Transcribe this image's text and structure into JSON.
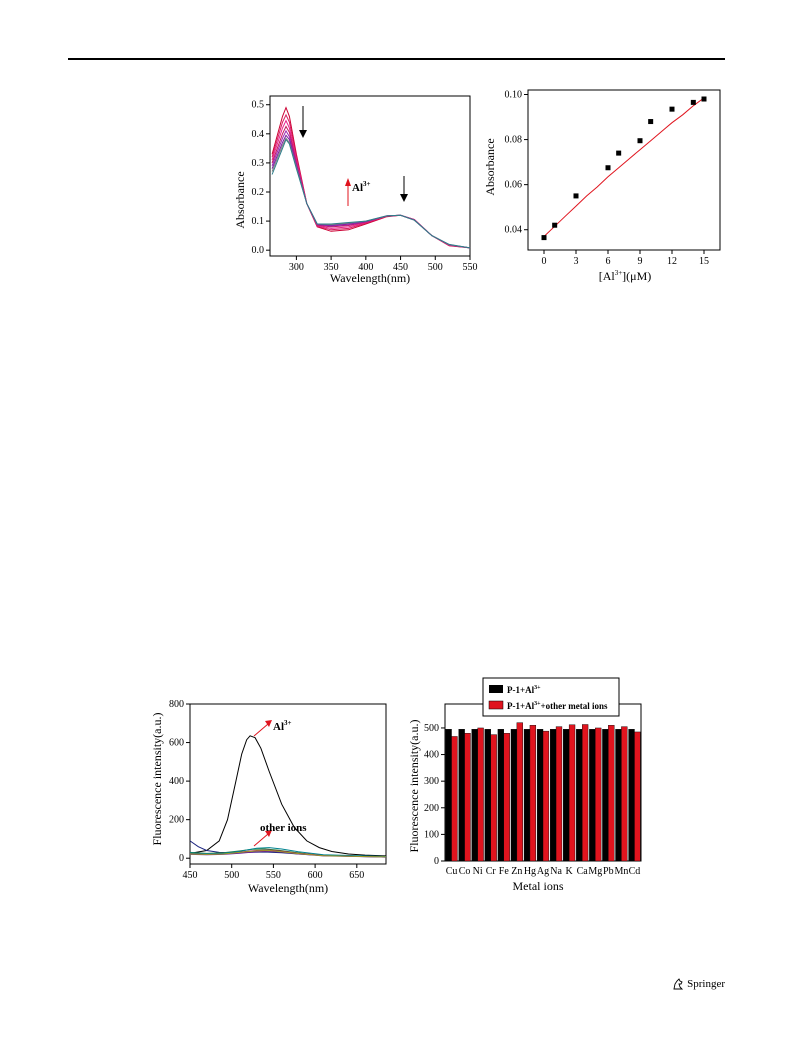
{
  "publisher": {
    "name": "Springer"
  },
  "figures": {
    "uv_titration": {
      "xlabel": "Wavelength(nm)",
      "ylabel": "Absorbance",
      "annotation": "Al",
      "annotation_sup": "3+"
    },
    "abs_vs_conc": {
      "xlabel_main": "[Al",
      "xlabel_sup": "3+",
      "xlabel_tail": "](μM)",
      "ylabel": "Absorbance"
    },
    "fluorescence": {
      "xlabel": "Wavelength(nm)",
      "ylabel": "Fluorescence intensity(a.u.)",
      "annotation_al": "Al",
      "annotation_al_sup": "3+",
      "annotation_other": "other ions"
    },
    "competition": {
      "xlabel": "Metal ions",
      "ylabel": "Fluorescence intensity(a.u.)",
      "legend1_main": "P-1+Al",
      "legend1_sup": "3+",
      "legend2_main": "P-1+Al",
      "legend2_sup": "3+",
      "legend2_tail": "+other metal ions"
    }
  },
  "chart_data": [
    {
      "type": "line",
      "xlim": [
        262,
        550
      ],
      "ylim": [
        -0.02,
        0.53
      ],
      "xticks": [
        300,
        350,
        400,
        450,
        500,
        550
      ],
      "yticks": [
        0.0,
        0.1,
        0.2,
        0.3,
        0.4,
        0.5
      ],
      "series": [
        {
          "color": "#cc0033",
          "values": [
            [
              265,
              0.33
            ],
            [
              280,
              0.46
            ],
            [
              285,
              0.49
            ],
            [
              290,
              0.46
            ],
            [
              300,
              0.33
            ],
            [
              315,
              0.16
            ],
            [
              330,
              0.08
            ],
            [
              350,
              0.065
            ],
            [
              375,
              0.07
            ],
            [
              400,
              0.09
            ],
            [
              430,
              0.115
            ],
            [
              450,
              0.12
            ],
            [
              470,
              0.105
            ],
            [
              495,
              0.05
            ],
            [
              520,
              0.015
            ],
            [
              550,
              0.008
            ]
          ]
        },
        {
          "color": "#d81b60",
          "values": [
            [
              265,
              0.32
            ],
            [
              280,
              0.44
            ],
            [
              285,
              0.465
            ],
            [
              290,
              0.44
            ],
            [
              300,
              0.32
            ],
            [
              315,
              0.16
            ],
            [
              330,
              0.082
            ],
            [
              350,
              0.07
            ],
            [
              375,
              0.075
            ],
            [
              400,
              0.093
            ],
            [
              430,
              0.116
            ],
            [
              450,
              0.12
            ],
            [
              470,
              0.105
            ],
            [
              495,
              0.05
            ],
            [
              520,
              0.016
            ],
            [
              550,
              0.008
            ]
          ]
        },
        {
          "color": "#e91e8c",
          "values": [
            [
              265,
              0.31
            ],
            [
              280,
              0.42
            ],
            [
              285,
              0.445
            ],
            [
              290,
              0.42
            ],
            [
              300,
              0.31
            ],
            [
              315,
              0.16
            ],
            [
              330,
              0.084
            ],
            [
              350,
              0.075
            ],
            [
              375,
              0.08
            ],
            [
              400,
              0.095
            ],
            [
              430,
              0.117
            ],
            [
              450,
              0.12
            ],
            [
              470,
              0.105
            ],
            [
              495,
              0.05
            ],
            [
              520,
              0.017
            ],
            [
              550,
              0.008
            ]
          ]
        },
        {
          "color": "#c2185b",
          "values": [
            [
              265,
              0.3
            ],
            [
              280,
              0.4
            ],
            [
              285,
              0.425
            ],
            [
              290,
              0.405
            ],
            [
              300,
              0.3
            ],
            [
              315,
              0.16
            ],
            [
              330,
              0.086
            ],
            [
              350,
              0.08
            ],
            [
              375,
              0.085
            ],
            [
              400,
              0.097
            ],
            [
              430,
              0.118
            ],
            [
              450,
              0.12
            ],
            [
              470,
              0.104
            ],
            [
              495,
              0.05
            ],
            [
              520,
              0.018
            ],
            [
              550,
              0.008
            ]
          ]
        },
        {
          "color": "#9c27b0",
          "values": [
            [
              265,
              0.29
            ],
            [
              280,
              0.385
            ],
            [
              285,
              0.41
            ],
            [
              290,
              0.39
            ],
            [
              300,
              0.295
            ],
            [
              315,
              0.16
            ],
            [
              330,
              0.088
            ],
            [
              350,
              0.083
            ],
            [
              375,
              0.088
            ],
            [
              400,
              0.098
            ],
            [
              430,
              0.118
            ],
            [
              450,
              0.12
            ],
            [
              470,
              0.104
            ],
            [
              495,
              0.05
            ],
            [
              520,
              0.018
            ],
            [
              550,
              0.008
            ]
          ]
        },
        {
          "color": "#7b1fa2",
          "values": [
            [
              265,
              0.28
            ],
            [
              280,
              0.37
            ],
            [
              285,
              0.395
            ],
            [
              290,
              0.38
            ],
            [
              300,
              0.29
            ],
            [
              315,
              0.16
            ],
            [
              330,
              0.09
            ],
            [
              350,
              0.086
            ],
            [
              375,
              0.091
            ],
            [
              400,
              0.099
            ],
            [
              430,
              0.118
            ],
            [
              450,
              0.12
            ],
            [
              470,
              0.103
            ],
            [
              495,
              0.05
            ],
            [
              520,
              0.019
            ],
            [
              550,
              0.008
            ]
          ]
        },
        {
          "color": "#808080",
          "values": [
            [
              265,
              0.27
            ],
            [
              280,
              0.36
            ],
            [
              285,
              0.385
            ],
            [
              290,
              0.37
            ],
            [
              300,
              0.285
            ],
            [
              315,
              0.16
            ],
            [
              330,
              0.09
            ],
            [
              350,
              0.088
            ],
            [
              375,
              0.093
            ],
            [
              400,
              0.1
            ],
            [
              430,
              0.118
            ],
            [
              450,
              0.12
            ],
            [
              470,
              0.103
            ],
            [
              495,
              0.05
            ],
            [
              520,
              0.019
            ],
            [
              550,
              0.008
            ]
          ]
        },
        {
          "color": "#2e7d8a",
          "values": [
            [
              265,
              0.26
            ],
            [
              280,
              0.35
            ],
            [
              285,
              0.38
            ],
            [
              290,
              0.365
            ],
            [
              300,
              0.28
            ],
            [
              315,
              0.16
            ],
            [
              330,
              0.09
            ],
            [
              350,
              0.09
            ],
            [
              375,
              0.095
            ],
            [
              400,
              0.1
            ],
            [
              430,
              0.118
            ],
            [
              450,
              0.12
            ],
            [
              470,
              0.103
            ],
            [
              495,
              0.05
            ],
            [
              520,
              0.02
            ],
            [
              550,
              0.008
            ]
          ]
        }
      ]
    },
    {
      "type": "scatter",
      "xlim": [
        -1.5,
        16.5
      ],
      "ylim": [
        0.031,
        0.102
      ],
      "xticks": [
        0,
        3,
        6,
        9,
        12,
        15
      ],
      "yticks": [
        0.04,
        0.06,
        0.08,
        0.1
      ],
      "points": [
        [
          0,
          0.0365
        ],
        [
          1,
          0.042
        ],
        [
          3,
          0.055
        ],
        [
          6,
          0.0675
        ],
        [
          7,
          0.074
        ],
        [
          9,
          0.0795
        ],
        [
          10,
          0.088
        ],
        [
          12,
          0.0935
        ],
        [
          14,
          0.0965
        ],
        [
          15,
          0.098
        ]
      ],
      "fit": [
        [
          0,
          0.037
        ],
        [
          1,
          0.0415
        ],
        [
          2,
          0.046
        ],
        [
          3,
          0.0505
        ],
        [
          4,
          0.055
        ],
        [
          5,
          0.059
        ],
        [
          6,
          0.0635
        ],
        [
          7,
          0.0675
        ],
        [
          8,
          0.0715
        ],
        [
          9,
          0.0755
        ],
        [
          10,
          0.0795
        ],
        [
          11,
          0.0835
        ],
        [
          12,
          0.0875
        ],
        [
          13,
          0.091
        ],
        [
          14,
          0.095
        ],
        [
          15,
          0.0985
        ]
      ]
    },
    {
      "type": "line",
      "xlim": [
        450,
        685
      ],
      "ylim": [
        -30,
        800
      ],
      "xticks": [
        450,
        500,
        550,
        600,
        650
      ],
      "yticks": [
        0,
        200,
        400,
        600,
        800
      ],
      "series": [
        {
          "name": "Al3+",
          "color": "#000000",
          "values": [
            [
              450,
              25
            ],
            [
              470,
              40
            ],
            [
              485,
              90
            ],
            [
              495,
              200
            ],
            [
              505,
              400
            ],
            [
              512,
              540
            ],
            [
              518,
              615
            ],
            [
              522,
              635
            ],
            [
              528,
              625
            ],
            [
              535,
              570
            ],
            [
              545,
              450
            ],
            [
              560,
              280
            ],
            [
              575,
              160
            ],
            [
              590,
              90
            ],
            [
              605,
              55
            ],
            [
              620,
              35
            ],
            [
              640,
              22
            ],
            [
              660,
              16
            ],
            [
              685,
              12
            ]
          ]
        },
        {
          "color": "#1a237e",
          "values": [
            [
              450,
              90
            ],
            [
              460,
              60
            ],
            [
              470,
              40
            ],
            [
              485,
              30
            ],
            [
              500,
              28
            ],
            [
              520,
              30
            ],
            [
              540,
              32
            ],
            [
              560,
              28
            ],
            [
              580,
              22
            ],
            [
              610,
              14
            ],
            [
              640,
              10
            ],
            [
              685,
              6
            ]
          ]
        },
        {
          "color": "#2e7d32",
          "values": [
            [
              450,
              30
            ],
            [
              470,
              25
            ],
            [
              490,
              28
            ],
            [
              510,
              38
            ],
            [
              525,
              46
            ],
            [
              540,
              48
            ],
            [
              555,
              42
            ],
            [
              575,
              30
            ],
            [
              600,
              18
            ],
            [
              630,
              12
            ],
            [
              685,
              8
            ]
          ]
        },
        {
          "color": "#ad1457",
          "values": [
            [
              450,
              25
            ],
            [
              470,
              22
            ],
            [
              490,
              25
            ],
            [
              510,
              32
            ],
            [
              530,
              40
            ],
            [
              545,
              42
            ],
            [
              560,
              36
            ],
            [
              580,
              25
            ],
            [
              610,
              15
            ],
            [
              685,
              8
            ]
          ]
        },
        {
          "color": "#00838f",
          "values": [
            [
              450,
              28
            ],
            [
              470,
              24
            ],
            [
              490,
              26
            ],
            [
              510,
              36
            ],
            [
              530,
              52
            ],
            [
              545,
              55
            ],
            [
              560,
              48
            ],
            [
              580,
              34
            ],
            [
              610,
              18
            ],
            [
              685,
              9
            ]
          ]
        },
        {
          "color": "#6a1b9a",
          "values": [
            [
              450,
              20
            ],
            [
              470,
              18
            ],
            [
              490,
              20
            ],
            [
              510,
              26
            ],
            [
              530,
              34
            ],
            [
              545,
              36
            ],
            [
              560,
              32
            ],
            [
              580,
              22
            ],
            [
              610,
              12
            ],
            [
              685,
              6
            ]
          ]
        },
        {
          "color": "#9e9d24",
          "values": [
            [
              450,
              22
            ],
            [
              470,
              20
            ],
            [
              490,
              22
            ],
            [
              510,
              30
            ],
            [
              530,
              38
            ],
            [
              545,
              40
            ],
            [
              560,
              34
            ],
            [
              580,
              24
            ],
            [
              610,
              13
            ],
            [
              685,
              7
            ]
          ]
        }
      ]
    },
    {
      "type": "bar",
      "ylim": [
        0,
        590
      ],
      "yticks": [
        0,
        100,
        200,
        300,
        400,
        500
      ],
      "categories": [
        "Cu",
        "Co",
        "Ni",
        "Cr",
        "Fe",
        "Zn",
        "Hg",
        "Ag",
        "Na",
        "K",
        "Ca",
        "Mg",
        "Pb",
        "Mn",
        "Cd"
      ],
      "series": [
        {
          "name": "P-1+Al3+",
          "color": "#000000",
          "values": [
            495,
            495,
            495,
            495,
            495,
            495,
            495,
            495,
            495,
            495,
            495,
            495,
            495,
            495,
            495
          ]
        },
        {
          "name": "P-1+Al3++other metal ions",
          "color": "#e0141e",
          "values": [
            468,
            480,
            500,
            475,
            480,
            520,
            510,
            488,
            505,
            512,
            513,
            500,
            510,
            505,
            485
          ]
        }
      ]
    }
  ]
}
